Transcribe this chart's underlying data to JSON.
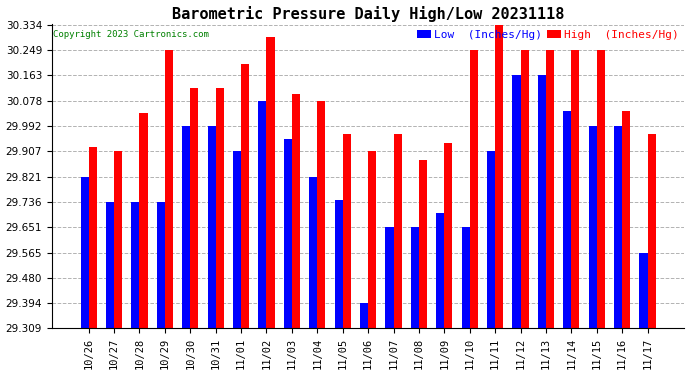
{
  "title": "Barometric Pressure Daily High/Low 20231118",
  "copyright": "Copyright 2023 Cartronics.com",
  "legend_low": "Low  (Inches/Hg)",
  "legend_high": "High  (Inches/Hg)",
  "categories": [
    "10/26",
    "10/27",
    "10/28",
    "10/29",
    "10/30",
    "10/31",
    "11/01",
    "11/02",
    "11/03",
    "11/04",
    "11/05",
    "11/06",
    "11/07",
    "11/08",
    "11/09",
    "11/10",
    "11/11",
    "11/12",
    "11/13",
    "11/14",
    "11/15",
    "11/16",
    "11/17"
  ],
  "low_values": [
    29.821,
    29.736,
    29.736,
    29.736,
    29.992,
    29.992,
    29.907,
    30.078,
    29.95,
    29.821,
    29.743,
    29.394,
    29.651,
    29.651,
    29.7,
    29.651,
    29.907,
    30.163,
    30.163,
    30.042,
    29.992,
    29.992,
    29.565
  ],
  "high_values": [
    29.921,
    29.907,
    30.035,
    30.249,
    30.12,
    30.12,
    30.2,
    30.291,
    30.1,
    30.078,
    29.964,
    29.907,
    29.964,
    29.878,
    29.936,
    30.249,
    30.334,
    30.249,
    30.249,
    30.249,
    30.249,
    30.042,
    29.964
  ],
  "ymin": 29.309,
  "ymax": 30.334,
  "yticks": [
    29.309,
    29.394,
    29.48,
    29.565,
    29.651,
    29.736,
    29.821,
    29.907,
    29.992,
    30.078,
    30.163,
    30.249,
    30.334
  ],
  "bar_width": 0.32,
  "low_color": "#0000ff",
  "high_color": "#ff0000",
  "background_color": "#ffffff",
  "grid_color": "#aaaaaa",
  "title_fontsize": 11,
  "tick_fontsize": 7.5,
  "label_fontsize": 8
}
